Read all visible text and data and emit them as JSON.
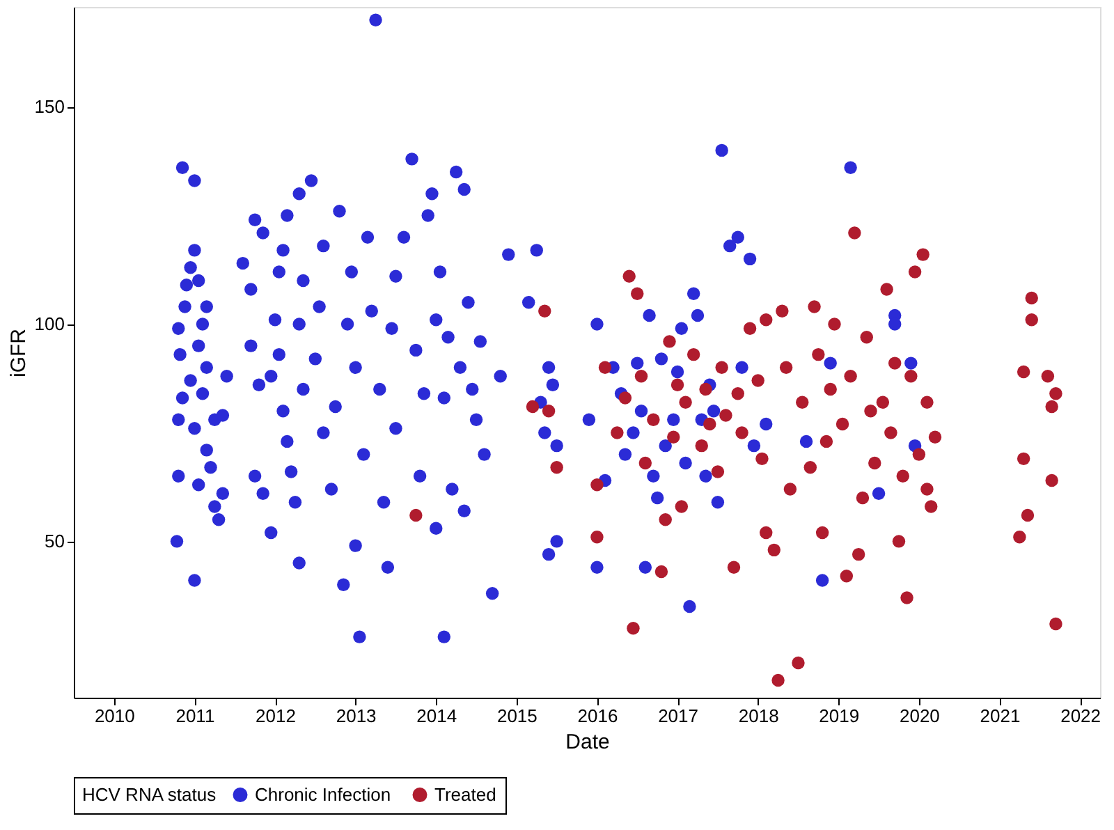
{
  "chart_data": {
    "type": "scatter",
    "xlabel": "Date",
    "ylabel": "iGFR",
    "legend_title": "HCV RNA status",
    "legend": "bottom",
    "grid": false,
    "marker": "circle",
    "xlim": [
      2009.5,
      2022.25
    ],
    "xticks": [
      2010,
      2011,
      2012,
      2013,
      2014,
      2015,
      2016,
      2017,
      2018,
      2019,
      2020,
      2021,
      2022
    ],
    "ylim": [
      14,
      173
    ],
    "yticks": [
      50,
      100,
      150
    ],
    "series": [
      {
        "name": "Chronic Infection",
        "color": "#2b2bd6",
        "x": [
          2010.78,
          2010.85,
          2011.0,
          2011.0,
          2010.8,
          2010.8,
          2010.85,
          2010.82,
          2010.8,
          2010.88,
          2010.9,
          2010.95,
          2011.0,
          2011.05,
          2011.1,
          2011.05,
          2011.15,
          2010.95,
          2011.1,
          2011.0,
          2011.15,
          2011.05,
          2011.25,
          2011.3,
          2011.35,
          2011.2,
          2011.25,
          2011.35,
          2011.4,
          2011.15,
          2011.6,
          2011.7,
          2011.75,
          2011.85,
          2011.7,
          2011.8,
          2011.75,
          2011.85,
          2011.95,
          2011.95,
          2012.0,
          2012.05,
          2012.1,
          2012.15,
          2012.05,
          2012.1,
          2012.15,
          2012.2,
          2012.25,
          2012.3,
          2012.3,
          2012.3,
          2012.35,
          2012.35,
          2012.45,
          2012.5,
          2012.55,
          2012.6,
          2012.6,
          2012.7,
          2012.75,
          2012.8,
          2012.85,
          2012.9,
          2012.95,
          2013.0,
          2013.0,
          2013.05,
          2013.1,
          2013.15,
          2013.2,
          2013.25,
          2013.3,
          2013.35,
          2013.4,
          2013.45,
          2013.5,
          2013.5,
          2013.6,
          2013.7,
          2013.75,
          2013.8,
          2013.85,
          2013.9,
          2013.95,
          2014.0,
          2014.0,
          2014.05,
          2014.1,
          2014.1,
          2014.15,
          2014.2,
          2014.25,
          2014.3,
          2014.35,
          2014.35,
          2014.4,
          2014.45,
          2014.5,
          2014.55,
          2014.6,
          2014.7,
          2014.9,
          2014.8,
          2015.15,
          2015.25,
          2015.3,
          2015.35,
          2015.4,
          2015.45,
          2015.5,
          2015.5,
          2015.4,
          2015.9,
          2016.0,
          2016.0,
          2016.1,
          2016.2,
          2016.3,
          2016.35,
          2016.45,
          2016.5,
          2016.55,
          2016.6,
          2016.65,
          2016.7,
          2016.75,
          2016.8,
          2016.85,
          2016.95,
          2017.0,
          2017.05,
          2017.1,
          2017.15,
          2017.2,
          2017.25,
          2017.3,
          2017.35,
          2017.4,
          2017.45,
          2017.5,
          2017.55,
          2017.65,
          2017.75,
          2017.8,
          2017.9,
          2017.95,
          2018.1,
          2018.6,
          2018.8,
          2018.9,
          2019.15,
          2019.5,
          2019.7,
          2019.7,
          2019.95,
          2019.9
        ],
        "values": [
          50,
          136,
          133,
          41,
          65,
          78,
          83,
          93,
          99,
          104,
          109,
          113,
          117,
          110,
          100,
          95,
          90,
          87,
          84,
          76,
          71,
          63,
          58,
          55,
          61,
          67,
          78,
          79,
          88,
          104,
          114,
          108,
          124,
          121,
          95,
          86,
          65,
          61,
          52,
          88,
          101,
          112,
          117,
          125,
          93,
          80,
          73,
          66,
          59,
          45,
          130,
          100,
          85,
          110,
          133,
          92,
          104,
          118,
          75,
          62,
          81,
          126,
          40,
          100,
          112,
          90,
          49,
          28,
          70,
          120,
          103,
          170,
          85,
          59,
          44,
          99,
          111,
          76,
          120,
          138,
          94,
          65,
          84,
          125,
          130,
          101,
          53,
          112,
          28,
          83,
          97,
          62,
          135,
          90,
          131,
          57,
          105,
          85,
          78,
          96,
          70,
          38,
          116,
          88,
          105,
          117,
          82,
          75,
          47,
          86,
          72,
          50,
          90,
          78,
          44,
          100,
          64,
          90,
          84,
          70,
          75,
          91,
          80,
          44,
          102,
          65,
          60,
          92,
          72,
          78,
          89,
          99,
          68,
          35,
          107,
          102,
          78,
          65,
          86,
          80,
          59,
          140,
          118,
          120,
          90,
          115,
          72,
          77,
          73,
          41,
          91,
          136,
          61,
          102,
          100,
          72,
          91
        ]
      },
      {
        "name": "Treated",
        "color": "#b01c2e",
        "x": [
          2013.75,
          2015.35,
          2015.2,
          2015.4,
          2015.5,
          2016.0,
          2016.0,
          2016.1,
          2016.25,
          2016.35,
          2016.4,
          2016.45,
          2016.5,
          2016.55,
          2016.6,
          2016.7,
          2016.8,
          2016.85,
          2016.9,
          2016.95,
          2017.0,
          2017.05,
          2017.1,
          2017.2,
          2017.3,
          2017.35,
          2017.4,
          2017.5,
          2017.55,
          2017.6,
          2017.7,
          2017.75,
          2017.8,
          2017.9,
          2018.0,
          2018.05,
          2018.1,
          2018.1,
          2018.2,
          2018.25,
          2018.3,
          2018.35,
          2018.4,
          2018.5,
          2018.55,
          2018.65,
          2018.7,
          2018.75,
          2018.8,
          2018.85,
          2018.9,
          2018.95,
          2019.05,
          2019.1,
          2019.15,
          2019.2,
          2019.25,
          2019.3,
          2019.35,
          2019.4,
          2019.45,
          2019.55,
          2019.6,
          2019.65,
          2019.7,
          2019.75,
          2019.8,
          2019.85,
          2019.9,
          2019.95,
          2020.0,
          2020.05,
          2020.1,
          2020.1,
          2020.15,
          2020.2,
          2021.25,
          2021.3,
          2021.3,
          2021.35,
          2021.4,
          2021.4,
          2021.6,
          2021.65,
          2021.7,
          2021.65,
          2021.7
        ],
        "values": [
          56,
          103,
          81,
          80,
          67,
          51,
          63,
          90,
          75,
          83,
          111,
          30,
          107,
          88,
          68,
          78,
          43,
          55,
          96,
          74,
          86,
          58,
          82,
          93,
          72,
          85,
          77,
          66,
          90,
          79,
          44,
          84,
          75,
          99,
          87,
          69,
          52,
          101,
          48,
          18,
          103,
          90,
          62,
          22,
          82,
          67,
          104,
          93,
          52,
          73,
          85,
          100,
          77,
          42,
          88,
          121,
          47,
          60,
          97,
          80,
          68,
          82,
          108,
          75,
          91,
          50,
          65,
          37,
          88,
          112,
          70,
          116,
          62,
          82,
          58,
          74,
          51,
          69,
          89,
          56,
          106,
          101,
          88,
          81,
          84,
          64,
          31
        ]
      }
    ]
  }
}
